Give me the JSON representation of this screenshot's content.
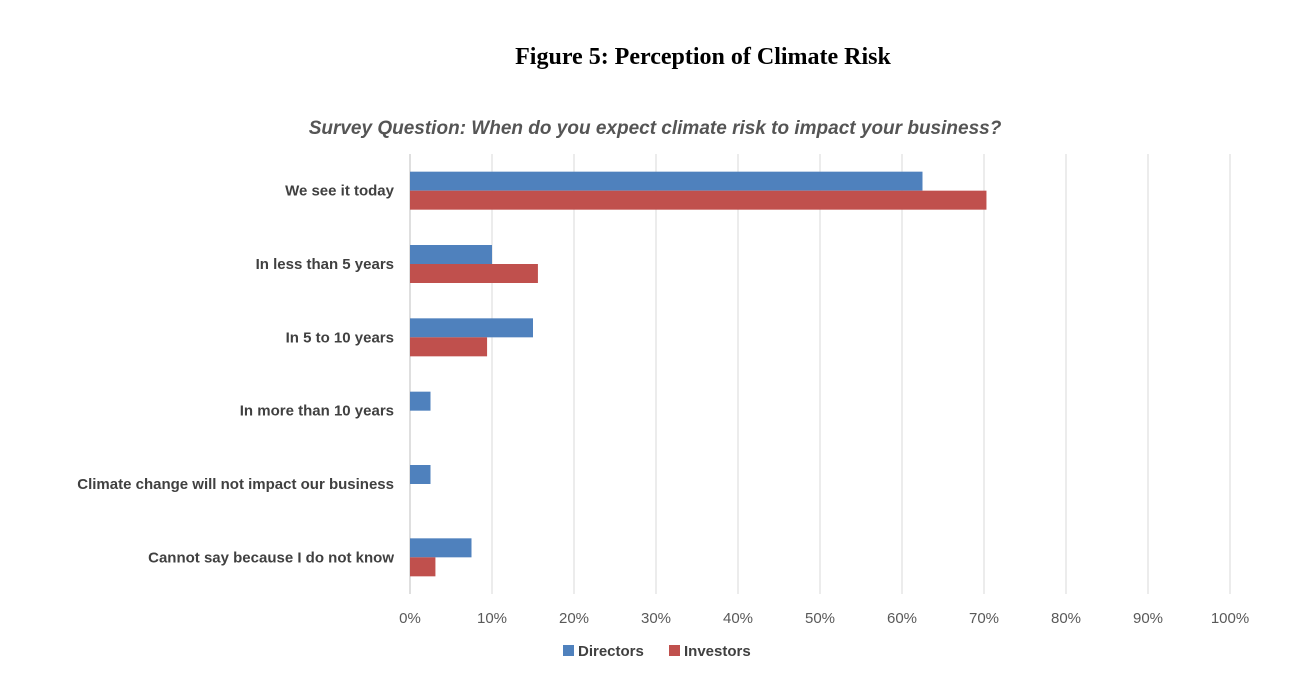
{
  "figure_title": "Figure 5: Perception of Climate Risk",
  "chart_data": {
    "type": "bar",
    "orientation": "horizontal",
    "subtitle_prefix": "Survey Question",
    "subtitle_rest": ": When do you expect climate risk to impact your business?",
    "categories": [
      "We see it today",
      "In less than 5 years",
      "In 5 to 10 years",
      "In more than 10 years",
      "Climate change will not impact our business",
      "Cannot say because I do not know"
    ],
    "series": [
      {
        "name": "Directors",
        "color": "#4f81bd",
        "values": [
          62.5,
          10,
          15,
          2.5,
          2.5,
          7.5
        ]
      },
      {
        "name": "Investors",
        "color": "#c0504d",
        "values": [
          70.3,
          15.6,
          9.4,
          0,
          0,
          3.1
        ]
      }
    ],
    "xlim": [
      0,
      100
    ],
    "xticks": [
      "0%",
      "10%",
      "20%",
      "30%",
      "40%",
      "50%",
      "60%",
      "70%",
      "80%",
      "90%",
      "100%"
    ],
    "grid": true,
    "legend_position": "bottom"
  }
}
